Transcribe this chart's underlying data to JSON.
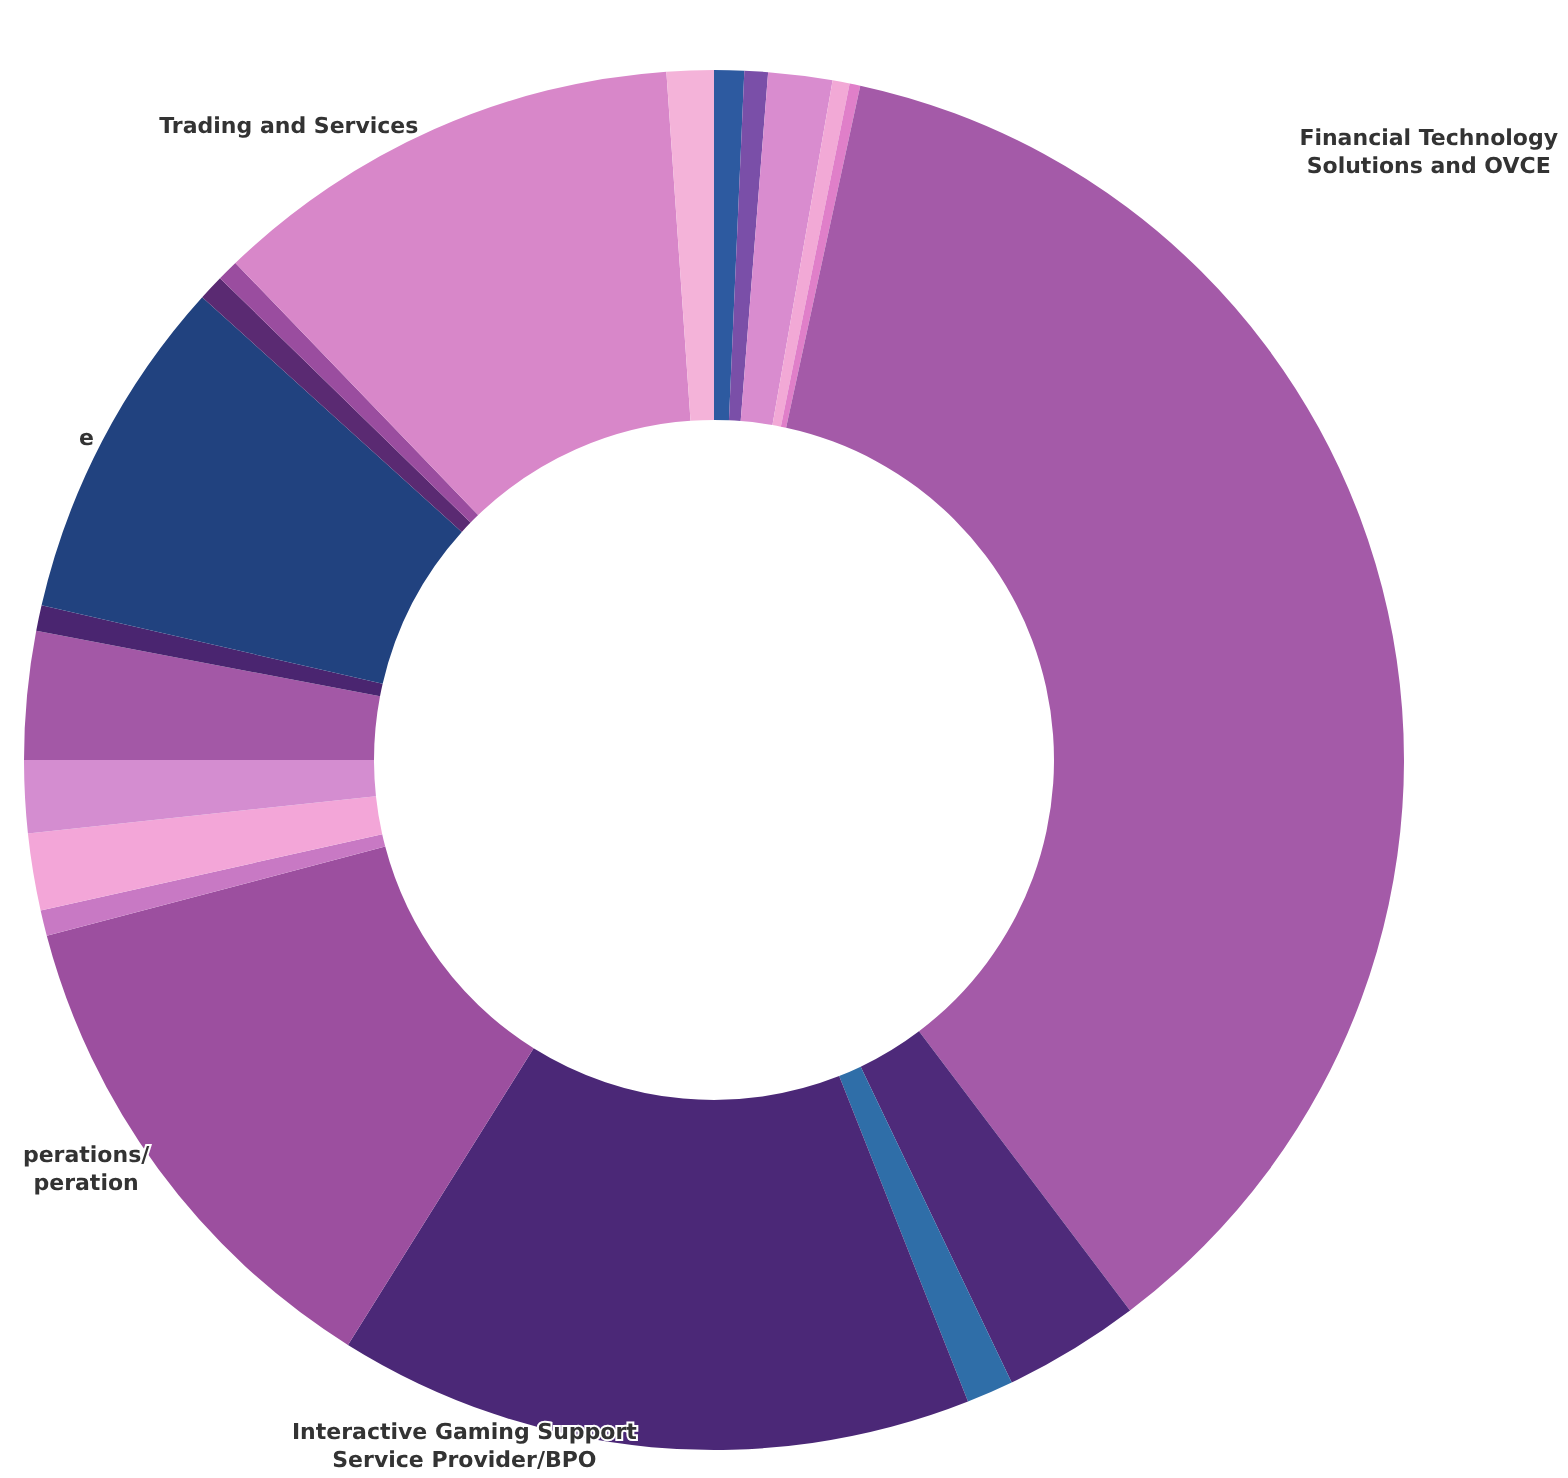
{
  "chart_data": {
    "type": "donut",
    "categories": [
      null,
      null,
      null,
      null,
      null,
      "Financial Technology\nSolutions and OVCE",
      null,
      null,
      "Interactive Gaming Support\nService Provider/BPO",
      "perations/\nperation",
      null,
      null,
      null,
      null,
      null,
      "e",
      null,
      null,
      "Trading and Services",
      null
    ],
    "values": [
      0.7,
      0.55,
      1.5,
      0.4,
      0.25,
      36.3,
      3.2,
      1.1,
      14.9,
      12.0,
      0.6,
      1.8,
      1.7,
      3.0,
      0.6,
      8.1,
      0.6,
      0.5,
      11.1,
      1.1
    ],
    "colors": [
      "#2d5aa0",
      "#7a4fa8",
      "#d98ccf",
      "#f2a9d6",
      "#e07fc9",
      "#a45aa8",
      "#4e2a7a",
      "#2f6ea8",
      "#4b2877",
      "#9c4f9f",
      "#c879c4",
      "#f3a6d8",
      "#d48dd0",
      "#a358a6",
      "#4a2570",
      "#21427f",
      "#5a2a72",
      "#9a4d9f",
      "#d887c9",
      "#f4b3d9"
    ],
    "legend": false
  }
}
